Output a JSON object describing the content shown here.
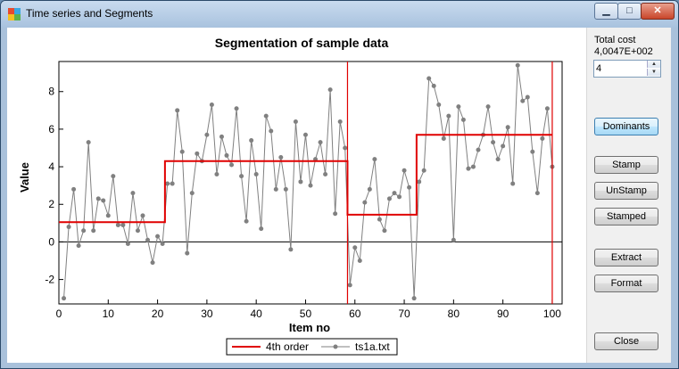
{
  "window": {
    "title": "Time series and Segments",
    "controls": {
      "minimize": "▁",
      "maximize": "□",
      "close": "✕"
    },
    "icon": "app-icon"
  },
  "side": {
    "total_cost_label": "Total cost",
    "total_cost_value": "4,0047E+002",
    "order_value": "4",
    "buttons": {
      "dominants": "Dominants",
      "stamp": "Stamp",
      "unstamp": "UnStamp",
      "stamped": "Stamped",
      "extract": "Extract",
      "format": "Format",
      "close": "Close"
    }
  },
  "chart_data": {
    "type": "line",
    "title": "Segmentation of sample data",
    "xlabel": "Item no",
    "ylabel": "Value",
    "xlim": [
      0,
      102
    ],
    "ylim": [
      -3.3,
      9.6
    ],
    "xticks": [
      0,
      10,
      20,
      30,
      40,
      50,
      60,
      70,
      80,
      90,
      100
    ],
    "yticks": [
      -2,
      0,
      2,
      4,
      6,
      8
    ],
    "legend_position": "bottom",
    "series": [
      {
        "name": "4th order",
        "color": "#e00000",
        "type": "step",
        "segments": [
          {
            "x0": 0,
            "x1": 21.5,
            "y": 1.05
          },
          {
            "x0": 21.5,
            "x1": 58.5,
            "y": 4.3
          },
          {
            "x0": 58.5,
            "x1": 72.5,
            "y": 1.45
          },
          {
            "x0": 72.5,
            "x1": 100,
            "y": 5.7
          }
        ],
        "boundaries": [
          58.5,
          100
        ]
      },
      {
        "name": "ts1a.txt",
        "color": "#808080",
        "type": "line-markers",
        "x_start": 1,
        "values": [
          -3.0,
          0.8,
          2.8,
          -0.2,
          0.6,
          5.3,
          0.6,
          2.3,
          2.2,
          1.4,
          3.5,
          0.9,
          0.9,
          -0.1,
          2.6,
          0.6,
          1.4,
          0.1,
          -1.1,
          0.3,
          -0.1,
          3.1,
          3.1,
          7.0,
          4.8,
          -0.6,
          2.6,
          4.7,
          4.3,
          5.7,
          7.3,
          3.6,
          5.6,
          4.6,
          4.1,
          7.1,
          3.5,
          1.1,
          5.4,
          3.6,
          0.7,
          6.7,
          5.9,
          2.8,
          4.5,
          2.8,
          -0.4,
          6.4,
          3.2,
          5.7,
          3.0,
          4.4,
          5.3,
          3.6,
          8.1,
          1.5,
          6.4,
          5.0,
          -2.3,
          -0.3,
          -1.0,
          2.1,
          2.8,
          4.4,
          1.2,
          0.6,
          2.3,
          2.6,
          2.4,
          3.8,
          2.9,
          -3.0,
          3.2,
          3.8,
          8.7,
          8.3,
          7.3,
          5.5,
          6.7,
          0.1,
          7.2,
          6.5,
          3.9,
          4.0,
          4.9,
          5.7,
          7.2,
          5.3,
          4.4,
          5.1,
          6.1,
          3.1,
          9.4,
          7.5,
          7.7,
          4.8,
          2.6,
          5.5,
          7.1,
          4.0
        ]
      }
    ]
  }
}
